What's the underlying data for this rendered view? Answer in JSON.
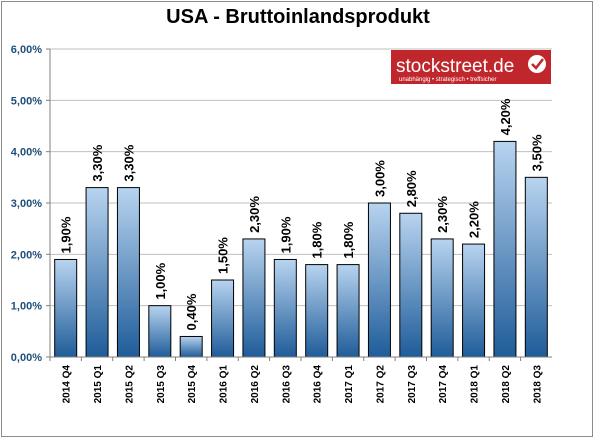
{
  "chart_data": {
    "type": "bar",
    "title": "USA - Bruttoinlandsprodukt",
    "xlabel": "",
    "ylabel": "",
    "categories": [
      "2014 Q4",
      "2015 Q1",
      "2015 Q2",
      "2015 Q3",
      "2015 Q4",
      "2016 Q1",
      "2016 Q2",
      "2016 Q3",
      "2016 Q4",
      "2017 Q1",
      "2017 Q2",
      "2017 Q3",
      "2017 Q4",
      "2018 Q1",
      "2018 Q2",
      "2018 Q3"
    ],
    "values": [
      1.9,
      3.3,
      3.3,
      1.0,
      0.4,
      1.5,
      2.3,
      1.9,
      1.8,
      1.8,
      3.0,
      2.8,
      2.3,
      2.2,
      4.2,
      3.5
    ],
    "value_labels": [
      "1,90%",
      "3,30%",
      "3,30%",
      "1,00%",
      "0,40%",
      "1,50%",
      "2,30%",
      "1,90%",
      "1,80%",
      "1,80%",
      "3,00%",
      "2,80%",
      "2,30%",
      "2,20%",
      "4,20%",
      "3,50%"
    ],
    "ylim": [
      0,
      6
    ],
    "yticks": [
      0,
      1,
      2,
      3,
      4,
      5,
      6
    ],
    "ytick_labels": [
      "0,00%",
      "1,00%",
      "2,00%",
      "3,00%",
      "4,00%",
      "5,00%",
      "6,00%"
    ],
    "grid": true,
    "colors": {
      "bar_top": "#b8d4f0",
      "bar_bottom": "#1f5c99",
      "ytick": "#1f4e79",
      "grid": "#bfbfbf"
    }
  },
  "logo": {
    "name": "stockstreet.de",
    "tagline": "unabhängig • strategisch • treffsicher",
    "bg_color": "#c0272d"
  }
}
